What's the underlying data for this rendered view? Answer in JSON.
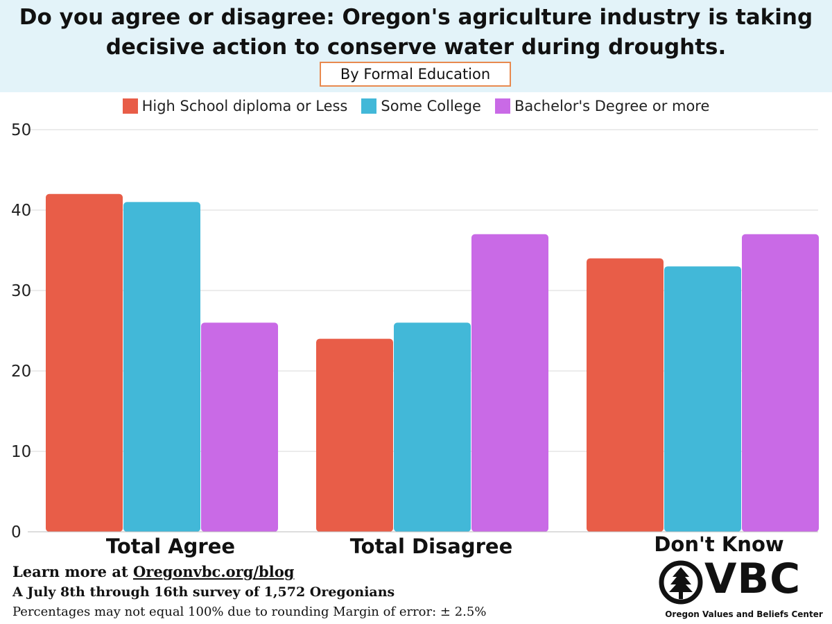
{
  "header": {
    "title_line1": "Do you agree or disagree: Oregon's agriculture industry is taking",
    "title_line2": "decisive action to conserve water during droughts.",
    "subtitle": "By Formal Education"
  },
  "colors": {
    "header_bg": "#e3f3f9",
    "subtitle_border": "#e8894e",
    "high_school": "#e85d48",
    "some_college": "#42b8d8",
    "bachelors": "#c96ae6",
    "grid": "#d8d8d8"
  },
  "chart_data": {
    "type": "bar",
    "categories": [
      "Total Agree",
      "Total Disagree",
      "Don't Know"
    ],
    "series": [
      {
        "name": "High School diploma or Less",
        "values": [
          42,
          24,
          34
        ],
        "color": "#e85d48"
      },
      {
        "name": "Some College",
        "values": [
          41,
          26,
          33
        ],
        "color": "#42b8d8"
      },
      {
        "name": "Bachelor's Degree or more",
        "values": [
          26,
          37,
          37
        ],
        "color": "#c96ae6"
      }
    ],
    "ylim": [
      0,
      50
    ],
    "yticks": [
      "0",
      "10",
      "20",
      "30",
      "40",
      "50"
    ],
    "grid": true,
    "legend_position": "top-center"
  },
  "footer": {
    "learn_prefix": "Learn more at ",
    "learn_link": "Oregonvbc.org/blog",
    "survey": "A July 8th through 16th survey of 1,572 Oregonians",
    "note": "Percentages may not equal  100% due to rounding  Margin of error: ± 2.5%"
  },
  "logo": {
    "text": "VBC",
    "caption": "Oregon Values and Beliefs Center",
    "icon": "tree-circle-icon"
  }
}
